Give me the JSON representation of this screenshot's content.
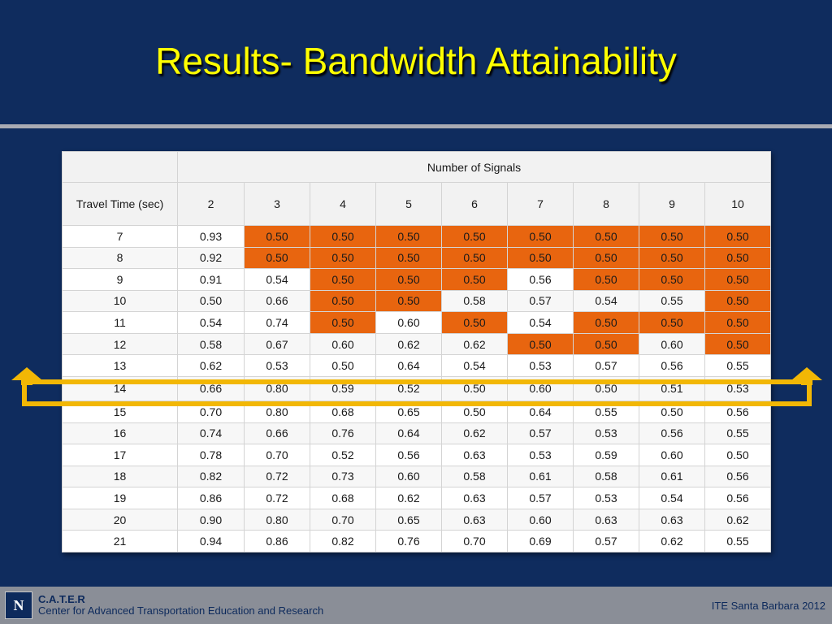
{
  "slide": {
    "title": "Results- Bandwidth Attainability"
  },
  "table": {
    "group_header": "Number of Signals",
    "row_header": "Travel Time (sec)",
    "signals": [
      "2",
      "3",
      "4",
      "5",
      "6",
      "7",
      "8",
      "9",
      "10"
    ],
    "rows": [
      {
        "tt": "7",
        "values": [
          "0.93",
          "0.50",
          "0.50",
          "0.50",
          "0.50",
          "0.50",
          "0.50",
          "0.50",
          "0.50"
        ],
        "highlight": [
          false,
          true,
          true,
          true,
          true,
          true,
          true,
          true,
          true
        ]
      },
      {
        "tt": "8",
        "values": [
          "0.92",
          "0.50",
          "0.50",
          "0.50",
          "0.50",
          "0.50",
          "0.50",
          "0.50",
          "0.50"
        ],
        "highlight": [
          false,
          true,
          true,
          true,
          true,
          true,
          true,
          true,
          true
        ]
      },
      {
        "tt": "9",
        "values": [
          "0.91",
          "0.54",
          "0.50",
          "0.50",
          "0.50",
          "0.56",
          "0.50",
          "0.50",
          "0.50"
        ],
        "highlight": [
          false,
          false,
          true,
          true,
          true,
          false,
          true,
          true,
          true
        ]
      },
      {
        "tt": "10",
        "values": [
          "0.50",
          "0.66",
          "0.50",
          "0.50",
          "0.58",
          "0.57",
          "0.54",
          "0.55",
          "0.50"
        ],
        "highlight": [
          false,
          false,
          true,
          true,
          false,
          false,
          false,
          false,
          true
        ]
      },
      {
        "tt": "11",
        "values": [
          "0.54",
          "0.74",
          "0.50",
          "0.60",
          "0.50",
          "0.54",
          "0.50",
          "0.50",
          "0.50"
        ],
        "highlight": [
          false,
          false,
          true,
          false,
          true,
          false,
          true,
          true,
          true
        ]
      },
      {
        "tt": "12",
        "values": [
          "0.58",
          "0.67",
          "0.60",
          "0.62",
          "0.62",
          "0.50",
          "0.50",
          "0.60",
          "0.50"
        ],
        "highlight": [
          false,
          false,
          false,
          false,
          false,
          true,
          true,
          false,
          true
        ]
      },
      {
        "tt": "13",
        "values": [
          "0.62",
          "0.53",
          "0.50",
          "0.64",
          "0.54",
          "0.53",
          "0.57",
          "0.56",
          "0.55"
        ],
        "highlight": [
          false,
          false,
          false,
          false,
          false,
          false,
          false,
          false,
          false
        ]
      },
      {
        "tt": "14",
        "values": [
          "0.66",
          "0.80",
          "0.59",
          "0.52",
          "0.50",
          "0.60",
          "0.50",
          "0.51",
          "0.53"
        ],
        "highlight": [
          false,
          false,
          false,
          false,
          false,
          false,
          false,
          false,
          false
        ]
      },
      {
        "tt": "15",
        "values": [
          "0.70",
          "0.80",
          "0.68",
          "0.65",
          "0.50",
          "0.64",
          "0.55",
          "0.50",
          "0.56"
        ],
        "highlight": [
          false,
          false,
          false,
          false,
          false,
          false,
          false,
          false,
          false
        ]
      },
      {
        "tt": "16",
        "values": [
          "0.74",
          "0.66",
          "0.76",
          "0.64",
          "0.62",
          "0.57",
          "0.53",
          "0.56",
          "0.55"
        ],
        "highlight": [
          false,
          false,
          false,
          false,
          false,
          false,
          false,
          false,
          false
        ]
      },
      {
        "tt": "17",
        "values": [
          "0.78",
          "0.70",
          "0.52",
          "0.56",
          "0.63",
          "0.53",
          "0.59",
          "0.60",
          "0.50"
        ],
        "highlight": [
          false,
          false,
          false,
          false,
          false,
          false,
          false,
          false,
          false
        ]
      },
      {
        "tt": "18",
        "values": [
          "0.82",
          "0.72",
          "0.73",
          "0.60",
          "0.58",
          "0.61",
          "0.58",
          "0.61",
          "0.56"
        ],
        "highlight": [
          false,
          false,
          false,
          false,
          false,
          false,
          false,
          false,
          false
        ]
      },
      {
        "tt": "19",
        "values": [
          "0.86",
          "0.72",
          "0.68",
          "0.62",
          "0.63",
          "0.57",
          "0.53",
          "0.54",
          "0.56"
        ],
        "highlight": [
          false,
          false,
          false,
          false,
          false,
          false,
          false,
          false,
          false
        ]
      },
      {
        "tt": "20",
        "values": [
          "0.90",
          "0.80",
          "0.70",
          "0.65",
          "0.63",
          "0.60",
          "0.63",
          "0.63",
          "0.62"
        ],
        "highlight": [
          false,
          false,
          false,
          false,
          false,
          false,
          false,
          false,
          false
        ]
      },
      {
        "tt": "21",
        "values": [
          "0.94",
          "0.86",
          "0.82",
          "0.76",
          "0.70",
          "0.69",
          "0.57",
          "0.62",
          "0.55"
        ],
        "highlight": [
          false,
          false,
          false,
          false,
          false,
          false,
          false,
          false,
          false
        ]
      }
    ]
  },
  "footer": {
    "logo_letter": "N",
    "org_short": "C.A.T.E.R",
    "org_full": "Center for Advanced Transportation Education and Research",
    "event": "ITE Santa Barbara 2012"
  },
  "colors": {
    "background": "#0f2c5e",
    "title": "#ffff00",
    "highlight": "#e8650f",
    "arrow": "#f2b705",
    "footer": "#8a8e97"
  },
  "icons": {
    "left_arrow": "up-arrow-icon",
    "right_arrow": "up-arrow-icon"
  }
}
